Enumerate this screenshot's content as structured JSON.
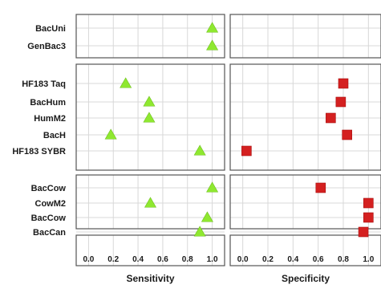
{
  "chart_data": {
    "type": "scatter",
    "layout": "faceted dot plot, 4 row groups x 2 panels",
    "colors": {
      "sensitivity_marker": "#8fe830",
      "specificity_marker": "#d42020",
      "grid": "#d8d8d8",
      "frame": "#555555"
    },
    "groups": [
      {
        "rows": [
          "BacUni",
          "GenBac3"
        ]
      },
      {
        "rows": [
          "HF183 Taq",
          "BacHum",
          "HumM2",
          "BacH",
          "HF183 SYBR"
        ]
      },
      {
        "rows": [
          "BacCow",
          "CowM2",
          "BacCow"
        ]
      },
      {
        "rows": [
          "BacCan"
        ]
      }
    ],
    "panels": [
      {
        "xlabel": "Sensitivity",
        "marker": "triangle",
        "xlim": [
          -0.1,
          1.1
        ],
        "ticks": [
          "0.0",
          "0.2",
          "0.4",
          "0.6",
          "0.8",
          "1.0"
        ],
        "values": [
          [
            1.0,
            1.0
          ],
          [
            0.3,
            0.49,
            0.49,
            0.18,
            0.9
          ],
          [
            1.0,
            0.5,
            0.96
          ],
          [
            0.9
          ]
        ]
      },
      {
        "xlabel": "Specificity",
        "marker": "square",
        "xlim": [
          -0.1,
          1.1
        ],
        "ticks": [
          "0.0",
          "0.2",
          "0.4",
          "0.6",
          "0.8",
          "1.0"
        ],
        "values": [
          [
            null,
            null
          ],
          [
            0.8,
            0.78,
            0.7,
            0.83,
            0.03
          ],
          [
            0.62,
            1.0,
            1.0
          ],
          [
            0.96
          ]
        ]
      }
    ],
    "grid": true
  }
}
